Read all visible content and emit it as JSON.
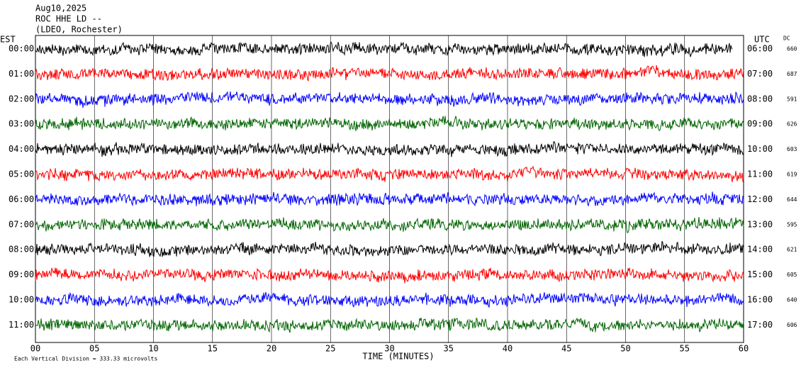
{
  "chart_data": {
    "type": "helicorder",
    "date": "Aug10,2025",
    "station": "ROC HHE LD --",
    "network": "(LDEO, Rochester)",
    "left_axis_label": "EST",
    "right_axis_label": "UTC",
    "dc_label": "DC",
    "est_labels": [
      "00:00",
      "01:00",
      "02:00",
      "03:00",
      "04:00",
      "05:00",
      "06:00",
      "07:00",
      "08:00",
      "09:00",
      "10:00",
      "11:00"
    ],
    "utc_labels": [
      "06:00",
      "07:00",
      "08:00",
      "09:00",
      "10:00",
      "11:00",
      "12:00",
      "13:00",
      "14:00",
      "15:00",
      "16:00",
      "17:00"
    ],
    "dc": [
      660,
      687,
      591,
      626,
      603,
      619,
      644,
      595,
      621,
      605,
      640,
      606
    ],
    "colors": [
      "#000000",
      "#ff0000",
      "#0000ff",
      "#006400"
    ],
    "xlim": [
      0,
      60
    ],
    "xticks": [
      {
        "value": 0,
        "label": "00"
      },
      {
        "value": 5,
        "label": "05"
      },
      10,
      15,
      20,
      25,
      30,
      35,
      40,
      45,
      50,
      55,
      60
    ],
    "xlabel": "TIME (MINUTES)",
    "footer": "Each Vertical Division =  333.33 microvolts"
  }
}
